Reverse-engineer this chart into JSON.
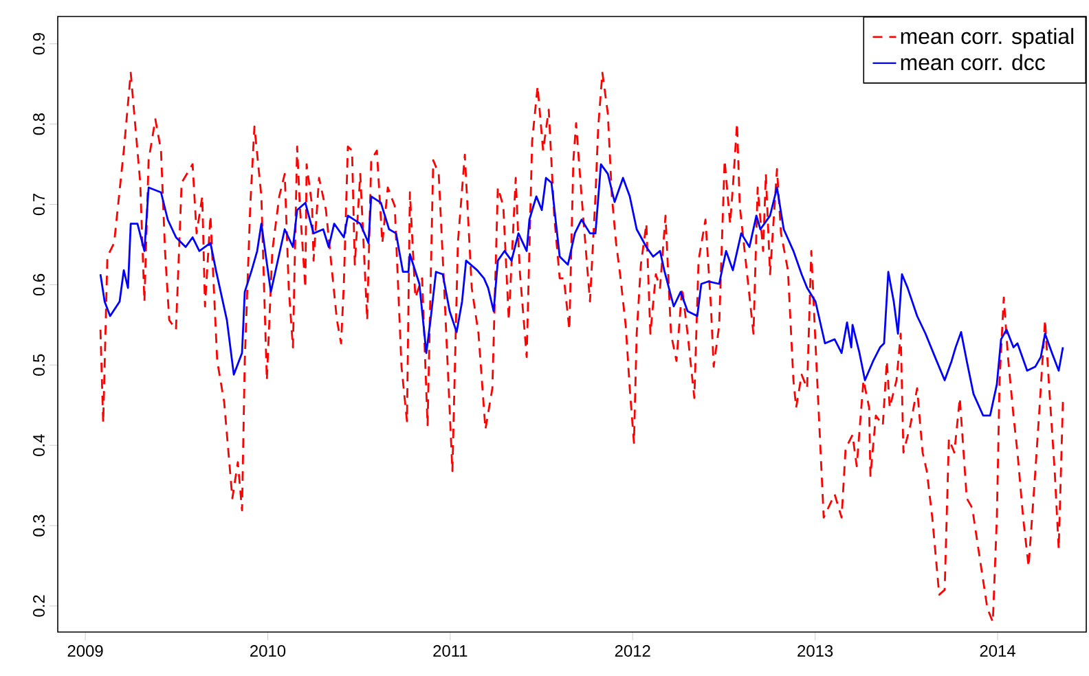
{
  "chart_data": {
    "type": "line",
    "xlim": [
      2008.849,
      2014.486
    ],
    "ylim": [
      0.1675,
      0.934
    ],
    "xticks": [
      2009,
      2010,
      2011,
      2012,
      2013,
      2014
    ],
    "yticks": [
      0.2,
      0.3,
      0.4,
      0.5,
      0.6,
      0.7,
      0.8,
      0.9
    ],
    "legend": "top right",
    "grid": false,
    "series": [
      {
        "name": "mean corr. spatial",
        "color": "#ff0000",
        "line_style": "dashed",
        "x": [
          2009.083,
          2009.098,
          2009.121,
          2009.158,
          2009.211,
          2009.249,
          2009.271,
          2009.301,
          2009.324,
          2009.347,
          2009.384,
          2009.415,
          2009.437,
          2009.46,
          2009.497,
          2009.528,
          2009.588,
          2009.61,
          2009.641,
          2009.656,
          2009.686,
          2009.723,
          2009.761,
          2009.806,
          2009.836,
          2009.859,
          2009.874,
          2009.904,
          2009.927,
          2009.965,
          2009.995,
          2010.025,
          2010.063,
          2010.093,
          2010.115,
          2010.138,
          2010.161,
          2010.176,
          2010.206,
          2010.213,
          2010.243,
          2010.251,
          2010.281,
          2010.319,
          2010.356,
          2010.379,
          2010.402,
          2010.417,
          2010.439,
          2010.462,
          2010.477,
          2010.507,
          2010.545,
          2010.567,
          2010.598,
          2010.628,
          2010.658,
          2010.696,
          2010.733,
          2010.763,
          2010.779,
          2010.809,
          2010.846,
          2010.876,
          2010.907,
          2010.937,
          2010.967,
          2011.012,
          2011.042,
          2011.08,
          2011.118,
          2011.155,
          2011.193,
          2011.231,
          2011.261,
          2011.291,
          2011.321,
          2011.359,
          2011.381,
          2011.419,
          2011.449,
          2011.479,
          2011.509,
          2011.54,
          2011.57,
          2011.6,
          2011.623,
          2011.653,
          2011.675,
          2011.69,
          2011.72,
          2011.766,
          2011.796,
          2011.811,
          2011.834,
          2011.864,
          2011.886,
          2011.909,
          2011.931,
          2011.962,
          2011.984,
          2012.007,
          2012.022,
          2012.045,
          2012.075,
          2012.097,
          2012.127,
          2012.15,
          2012.18,
          2012.21,
          2012.24,
          2012.271,
          2012.301,
          2012.338,
          2012.361,
          2012.399,
          2012.429,
          2012.444,
          2012.474,
          2012.504,
          2012.534,
          2012.549,
          2012.572,
          2012.587,
          2012.625,
          2012.662,
          2012.685,
          2012.715,
          2012.73,
          2012.753,
          2012.791,
          2012.813,
          2012.851,
          2012.881,
          2012.896,
          2012.926,
          2012.956,
          2012.979,
          2013.002,
          2013.017,
          2013.047,
          2013.107,
          2013.145,
          2013.167,
          2013.205,
          2013.228,
          2013.265,
          2013.296,
          2013.303,
          2013.333,
          2013.371,
          2013.393,
          2013.409,
          2013.446,
          2013.469,
          2013.484,
          2013.522,
          2013.559,
          2013.589,
          2013.612,
          2013.642,
          2013.68,
          2013.71,
          2013.733,
          2013.763,
          2013.793,
          2013.831,
          2013.861,
          2013.906,
          2013.944,
          2013.974,
          2013.996,
          2014.011,
          2014.034,
          2014.057,
          2014.087,
          2014.109,
          2014.14,
          2014.17,
          2014.207,
          2014.23,
          2014.26,
          2014.283,
          2014.313,
          2014.335,
          2014.358
        ],
        "values": [
          0.544,
          0.428,
          0.635,
          0.652,
          0.767,
          0.864,
          0.806,
          0.727,
          0.579,
          0.755,
          0.806,
          0.767,
          0.642,
          0.556,
          0.544,
          0.727,
          0.75,
          0.664,
          0.71,
          0.573,
          0.686,
          0.505,
          0.454,
          0.334,
          0.379,
          0.319,
          0.505,
          0.698,
          0.797,
          0.71,
          0.481,
          0.642,
          0.71,
          0.738,
          0.596,
          0.522,
          0.772,
          0.698,
          0.596,
          0.75,
          0.698,
          0.63,
          0.733,
          0.693,
          0.608,
          0.556,
          0.527,
          0.601,
          0.772,
          0.767,
          0.625,
          0.738,
          0.556,
          0.755,
          0.767,
          0.652,
          0.721,
          0.698,
          0.498,
          0.43,
          0.715,
          0.584,
          0.608,
          0.425,
          0.755,
          0.738,
          0.596,
          0.368,
          0.652,
          0.762,
          0.596,
          0.539,
          0.42,
          0.471,
          0.721,
          0.698,
          0.556,
          0.733,
          0.618,
          0.51,
          0.779,
          0.847,
          0.767,
          0.818,
          0.686,
          0.608,
          0.608,
          0.544,
          0.755,
          0.801,
          0.71,
          0.579,
          0.71,
          0.796,
          0.864,
          0.813,
          0.71,
          0.652,
          0.613,
          0.549,
          0.471,
          0.403,
          0.539,
          0.625,
          0.676,
          0.539,
          0.613,
          0.596,
          0.686,
          0.539,
          0.505,
          0.596,
          0.539,
          0.459,
          0.63,
          0.681,
          0.573,
          0.498,
          0.549,
          0.755,
          0.676,
          0.721,
          0.801,
          0.698,
          0.618,
          0.539,
          0.721,
          0.642,
          0.738,
          0.613,
          0.744,
          0.664,
          0.618,
          0.481,
          0.447,
          0.488,
          0.471,
          0.642,
          0.527,
          0.454,
          0.31,
          0.339,
          0.31,
          0.396,
          0.413,
          0.374,
          0.481,
          0.447,
          0.362,
          0.437,
          0.425,
          0.505,
          0.447,
          0.481,
          0.539,
          0.391,
          0.425,
          0.471,
          0.391,
          0.368,
          0.31,
          0.214,
          0.22,
          0.408,
          0.391,
          0.459,
          0.334,
          0.322,
          0.254,
          0.197,
          0.18,
          0.31,
          0.481,
          0.584,
          0.51,
          0.437,
          0.391,
          0.31,
          0.249,
          0.368,
          0.447,
          0.556,
          0.471,
          0.368,
          0.271,
          0.454
        ]
      },
      {
        "name": "mean corr. dcc",
        "color": "#0000ff",
        "line_style": "solid",
        "x": [
          2009.083,
          2009.106,
          2009.136,
          2009.188,
          2009.211,
          2009.234,
          2009.249,
          2009.286,
          2009.324,
          2009.347,
          2009.415,
          2009.452,
          2009.497,
          2009.55,
          2009.588,
          2009.625,
          2009.686,
          2009.716,
          2009.776,
          2009.814,
          2009.859,
          2009.874,
          2009.912,
          2009.942,
          2009.965,
          2010.017,
          2010.093,
          2010.138,
          2010.161,
          2010.206,
          2010.251,
          2010.304,
          2010.334,
          2010.364,
          2010.417,
          2010.439,
          2010.507,
          2010.552,
          2010.567,
          2010.62,
          2010.665,
          2010.703,
          2010.741,
          2010.771,
          2010.779,
          2010.831,
          2010.869,
          2010.892,
          2010.922,
          2010.959,
          2010.997,
          2011.035,
          2011.065,
          2011.087,
          2011.148,
          2011.185,
          2011.208,
          2011.238,
          2011.261,
          2011.298,
          2011.336,
          2011.374,
          2011.419,
          2011.434,
          2011.472,
          2011.502,
          2011.525,
          2011.555,
          2011.6,
          2011.645,
          2011.683,
          2011.72,
          2011.766,
          2011.796,
          2011.826,
          2011.864,
          2011.901,
          2011.947,
          2011.984,
          2012.022,
          2012.075,
          2012.112,
          2012.15,
          2012.173,
          2012.225,
          2012.263,
          2012.301,
          2012.354,
          2012.376,
          2012.414,
          2012.474,
          2012.512,
          2012.549,
          2012.595,
          2012.64,
          2012.678,
          2012.7,
          2012.753,
          2012.791,
          2012.828,
          2012.881,
          2012.926,
          2012.956,
          2013.002,
          2013.054,
          2013.107,
          2013.145,
          2013.175,
          2013.198,
          2013.205,
          2013.243,
          2013.273,
          2013.318,
          2013.356,
          2013.378,
          2013.401,
          2013.431,
          2013.454,
          2013.476,
          2013.507,
          2013.559,
          2013.605,
          2013.657,
          2013.71,
          2013.748,
          2013.77,
          2013.8,
          2013.831,
          2013.868,
          2013.921,
          2013.959,
          2013.996,
          2014.019,
          2014.049,
          2014.087,
          2014.109,
          2014.162,
          2014.207,
          2014.237,
          2014.26,
          2014.298,
          2014.335,
          2014.358
        ],
        "values": [
          0.613,
          0.579,
          0.561,
          0.579,
          0.618,
          0.596,
          0.676,
          0.676,
          0.642,
          0.721,
          0.715,
          0.681,
          0.659,
          0.647,
          0.659,
          0.642,
          0.652,
          0.618,
          0.556,
          0.488,
          0.515,
          0.591,
          0.618,
          0.642,
          0.676,
          0.591,
          0.669,
          0.647,
          0.693,
          0.702,
          0.664,
          0.669,
          0.647,
          0.676,
          0.659,
          0.686,
          0.676,
          0.652,
          0.71,
          0.702,
          0.669,
          0.664,
          0.616,
          0.616,
          0.638,
          0.601,
          0.515,
          0.556,
          0.616,
          0.613,
          0.567,
          0.541,
          0.579,
          0.63,
          0.618,
          0.608,
          0.596,
          0.567,
          0.63,
          0.642,
          0.63,
          0.664,
          0.642,
          0.681,
          0.71,
          0.693,
          0.733,
          0.727,
          0.635,
          0.625,
          0.664,
          0.681,
          0.664,
          0.664,
          0.75,
          0.738,
          0.703,
          0.733,
          0.71,
          0.669,
          0.647,
          0.635,
          0.642,
          0.618,
          0.573,
          0.591,
          0.567,
          0.561,
          0.601,
          0.604,
          0.601,
          0.642,
          0.618,
          0.664,
          0.647,
          0.686,
          0.669,
          0.686,
          0.721,
          0.669,
          0.642,
          0.613,
          0.596,
          0.579,
          0.527,
          0.532,
          0.515,
          0.553,
          0.522,
          0.55,
          0.515,
          0.481,
          0.505,
          0.522,
          0.527,
          0.616,
          0.579,
          0.539,
          0.613,
          0.596,
          0.561,
          0.539,
          0.51,
          0.481,
          0.505,
          0.522,
          0.541,
          0.505,
          0.464,
          0.437,
          0.437,
          0.476,
          0.532,
          0.544,
          0.522,
          0.527,
          0.493,
          0.498,
          0.51,
          0.539,
          0.515,
          0.493,
          0.522
        ]
      }
    ]
  }
}
